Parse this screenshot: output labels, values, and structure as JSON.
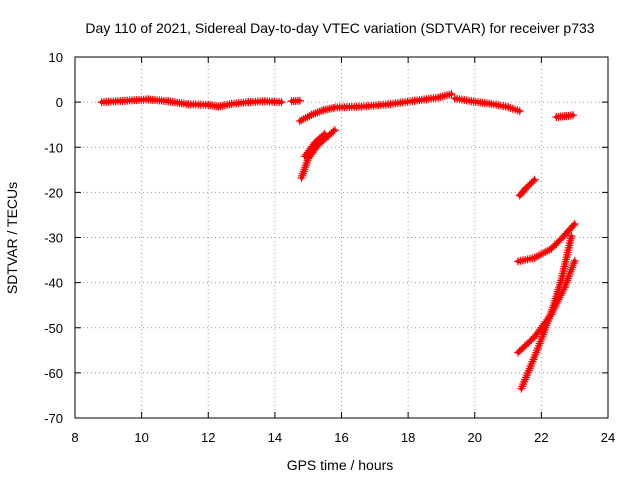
{
  "chart_data": {
    "type": "scatter",
    "title": "Day 110 of 2021, Sidereal Day-to-day VTEC variation (SDTVAR) for receiver p733",
    "xlabel": "GPS time / hours",
    "ylabel": "SDTVAR / TECUs",
    "xlim": [
      8,
      24
    ],
    "ylim": [
      -70,
      10
    ],
    "x_ticks": [
      "8",
      "10",
      "12",
      "14",
      "16",
      "18",
      "20",
      "22",
      "24"
    ],
    "y_ticks": [
      "10",
      "0",
      "-10",
      "-20",
      "-30",
      "-40",
      "-50",
      "-60",
      "-70"
    ],
    "grid": true,
    "marker": "plus",
    "series_color": "#ff0000",
    "segments": [
      {
        "x": [
          8.8,
          9.5,
          10.2,
          10.8,
          11.4,
          12.0,
          12.3,
          12.7
        ],
        "y": [
          0.0,
          0.3,
          0.6,
          0.2,
          -0.5,
          -0.6,
          -1.0,
          -0.4
        ]
      },
      {
        "x": [
          12.7,
          13.2,
          13.7,
          14.2
        ],
        "y": [
          -0.4,
          0.0,
          0.2,
          0.0
        ]
      },
      {
        "x": [
          14.5,
          14.75
        ],
        "y": [
          0.2,
          0.3
        ]
      },
      {
        "x": [
          14.75,
          15.1,
          15.45,
          15.75
        ],
        "y": [
          -4.2,
          -2.8,
          -1.8,
          -1.3
        ]
      },
      {
        "x": [
          15.8,
          16.6,
          17.4,
          18.2,
          18.9,
          19.3
        ],
        "y": [
          -1.2,
          -1.0,
          -0.5,
          0.3,
          1.0,
          1.8
        ]
      },
      {
        "x": [
          19.4,
          19.9,
          20.5,
          21.0,
          21.35
        ],
        "y": [
          0.8,
          0.2,
          -0.4,
          -1.1,
          -2.0
        ]
      },
      {
        "x": [
          14.8,
          15.0,
          15.3,
          15.6,
          15.8
        ],
        "y": [
          -16.8,
          -12.5,
          -9.5,
          -7.5,
          -6.2
        ]
      },
      {
        "x": [
          14.9,
          15.2,
          15.5
        ],
        "y": [
          -12.0,
          -9.0,
          -7.0
        ]
      },
      {
        "x": [
          21.35,
          21.55,
          21.8
        ],
        "y": [
          -20.7,
          -19.0,
          -17.2
        ]
      },
      {
        "x": [
          21.3,
          21.8,
          22.3,
          22.7,
          23.0
        ],
        "y": [
          -35.3,
          -34.5,
          -32.5,
          -29.5,
          -27.0
        ]
      },
      {
        "x": [
          21.3,
          21.8,
          22.3,
          22.7,
          23.0
        ],
        "y": [
          -55.5,
          -52.0,
          -47.0,
          -41.0,
          -35.2
        ]
      },
      {
        "x": [
          21.4,
          21.9,
          22.3,
          22.6,
          22.9
        ],
        "y": [
          -63.5,
          -54.5,
          -46.5,
          -39.5,
          -29.7
        ]
      },
      {
        "x": [
          22.45,
          22.75,
          22.95
        ],
        "y": [
          -3.3,
          -3.1,
          -2.9
        ]
      }
    ]
  }
}
